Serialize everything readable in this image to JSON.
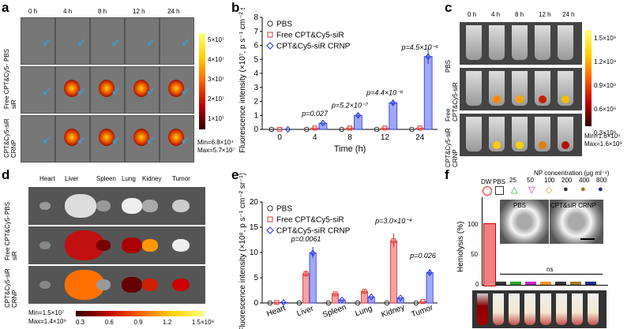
{
  "panels": {
    "a": "a",
    "b": "b",
    "c": "c",
    "d": "d",
    "e": "e",
    "f": "f"
  },
  "panel_a": {
    "times": [
      "0 h",
      "4 h",
      "8 h",
      "12 h",
      "24 h"
    ],
    "rows": [
      "PBS",
      "Free CPT&Cy5-siR",
      "CPT&Cy5-siR CRNP"
    ],
    "colorbar": [
      "5×10⁷",
      "4×10⁷",
      "3×10⁷",
      "2×10⁷",
      "1×10⁷"
    ],
    "min": "Min=6.8×10⁴",
    "max": "Max=5.7×10⁷"
  },
  "panel_c": {
    "times": [
      "0 h",
      "4 h",
      "8 h",
      "12 h",
      "24 h"
    ],
    "rows": [
      "PBS",
      "Free CPT&Cy5-siR",
      "CPT&Cy5-siR CRNP"
    ],
    "colorbar": [
      "1.5×10⁹",
      "1.2×10⁹",
      "0.9×10⁹",
      "0.6×10⁹",
      "0.3×10⁹"
    ],
    "min": "Min=1.6×10⁶",
    "max": "Max=1.6×10⁹"
  },
  "panel_d": {
    "organs": [
      "Heart",
      "Liver",
      "Spleen",
      "Lung",
      "Kidney",
      "Tumor"
    ],
    "rows": [
      "PBS",
      "Free CPT&Cy5-siR",
      "CPT&Cy5-siR CRNP"
    ],
    "min": "Min=1.5×10⁷",
    "max": "Max=1.4×10⁹",
    "colorbar": [
      "0.3",
      "0.6",
      "0.9",
      "1.2",
      "1.5×10⁹"
    ]
  },
  "panel_f": {
    "ylabel": "Hemolysis (%)",
    "dw": "DW",
    "pbs": "PBS",
    "np_title": "NP concentration (μg ml⁻¹)",
    "concs": [
      "25",
      "50",
      "100",
      "200",
      "400",
      "800"
    ],
    "inset_left": "PBS",
    "inset_right": "CPT&siR CRNP",
    "ns": "ns",
    "ticks": [
      "0",
      "50",
      "100"
    ]
  },
  "chart_data": [
    {
      "type": "bar",
      "title": "",
      "xlabel": "Time (h)",
      "ylabel": "Fluorescence intensity (×10⁷, p s⁻¹ cm⁻² sr⁻¹)",
      "categories": [
        "0",
        "4",
        "8",
        "12",
        "24"
      ],
      "ylim": [
        0,
        8
      ],
      "yticks": [
        "0",
        "1",
        "2",
        "3",
        "4",
        "5",
        "6",
        "7",
        "8"
      ],
      "series": [
        {
          "name": "PBS",
          "values": [
            0,
            0,
            0,
            0,
            0
          ]
        },
        {
          "name": "Free CPT&Cy5-siR",
          "values": [
            0,
            0.1,
            0.1,
            0.1,
            0.1
          ]
        },
        {
          "name": "CPT&Cy5-siR CRNP",
          "values": [
            0,
            0.45,
            1.0,
            1.9,
            5.2
          ]
        }
      ],
      "annotations": [
        "p=0.027",
        "p=5.2×10⁻⁷",
        "p=4.4×10⁻⁶",
        "p=4.5×10⁻⁶"
      ]
    },
    {
      "type": "bar",
      "title": "",
      "xlabel": "",
      "ylabel": "Fluorescence intensity (×10⁸, p s⁻¹ cm⁻² sr⁻¹)",
      "categories": [
        "Heart",
        "Liver",
        "Spleen",
        "Lung",
        "Kidney",
        "Tumor"
      ],
      "ylim": [
        0,
        20
      ],
      "yticks": [
        "0",
        "5",
        "10",
        "15",
        "20"
      ],
      "series": [
        {
          "name": "PBS",
          "values": [
            0,
            0,
            0,
            0,
            0,
            0
          ]
        },
        {
          "name": "Free CPT&Cy5-siR",
          "values": [
            0.1,
            5.8,
            1.8,
            2.3,
            12.3,
            0.3
          ]
        },
        {
          "name": "CPT&Cy5-siR CRNP",
          "values": [
            0.1,
            9.9,
            0.6,
            1.2,
            1.0,
            6.0
          ]
        }
      ],
      "annotations": [
        "p=0.0061",
        "p=3.0×10⁻⁴",
        "p=0.026"
      ]
    }
  ]
}
